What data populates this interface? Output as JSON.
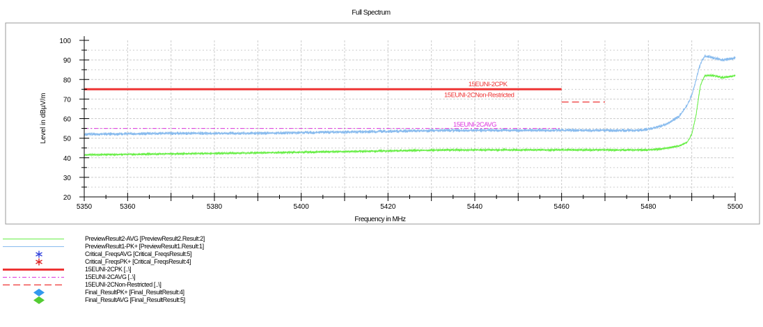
{
  "chart_data": {
    "type": "line",
    "title": "Full Spectrum",
    "xlabel": "Frequency in MHz",
    "ylabel": "Level in dBµV/m",
    "xlim": [
      5350,
      5500
    ],
    "ylim": [
      20,
      100
    ],
    "x_ticks": [
      5350,
      5360,
      5380,
      5400,
      5420,
      5440,
      5460,
      5480,
      5500
    ],
    "y_ticks": [
      20,
      30,
      40,
      50,
      60,
      70,
      80,
      90,
      100
    ],
    "grid": true,
    "series": [
      {
        "name": "PreviewResult2-AVG [PreviewResult2.Result:2]",
        "color": "#66ee44",
        "style": "solid",
        "x": [
          5350,
          5370,
          5390,
          5405,
          5420,
          5435,
          5450,
          5465,
          5480,
          5483,
          5487,
          5489,
          5490,
          5491,
          5492,
          5493,
          5495,
          5497,
          5499,
          5500
        ],
        "y": [
          41.5,
          42,
          42.5,
          43,
          43.5,
          44,
          44,
          44,
          44,
          44.5,
          46,
          48,
          52,
          62,
          77,
          82,
          82,
          81,
          81.5,
          82
        ]
      },
      {
        "name": "PreviewResult1-PK+ [PreviewResult1.Result:1]",
        "color": "#88bbee",
        "style": "solid",
        "x": [
          5350,
          5370,
          5390,
          5405,
          5420,
          5435,
          5450,
          5465,
          5478,
          5481,
          5484,
          5487,
          5489,
          5490,
          5491,
          5492,
          5493,
          5495,
          5497,
          5499,
          5500
        ],
        "y": [
          52,
          52.5,
          52.5,
          53,
          53.5,
          54,
          54,
          54,
          54,
          55,
          57,
          61,
          67,
          72,
          80,
          88,
          92,
          91,
          90,
          90.5,
          91
        ]
      },
      {
        "name": "15EUNI-2CPK [..\\]",
        "color": "#ee3333",
        "style": "thick",
        "x": [
          5350,
          5460
        ],
        "y": [
          75,
          75
        ]
      },
      {
        "name": "15EUNI-2CAVG [..\\]",
        "color": "#dd33dd",
        "style": "dashdot",
        "x": [
          5350,
          5460
        ],
        "y": [
          55,
          55
        ]
      },
      {
        "name": "15EUNI-2CNon-Restricted [..\\]",
        "color": "#ee3333",
        "style": "dashed",
        "x": [
          5460,
          5470
        ],
        "y": [
          68.5,
          68.5
        ]
      }
    ],
    "annotations": [
      {
        "text": "15EUNI-2CPK",
        "x": 5443,
        "y": 76.5,
        "color": "#ee3333"
      },
      {
        "text": "15EUNI-2CNon-Restricted",
        "x": 5441,
        "y": 71,
        "color": "#ee3333"
      },
      {
        "text": "15EUNI-2CAVG",
        "x": 5440,
        "y": 56,
        "color": "#dd33dd"
      }
    ]
  },
  "legend": [
    {
      "label": "PreviewResult2-AVG [PreviewResult2.Result:2]",
      "symbol": "line",
      "color": "#66ee44"
    },
    {
      "label": "PreviewResult1-PK+ [PreviewResult1.Result:1]",
      "symbol": "line",
      "color": "#88bbee"
    },
    {
      "label": "Critical_FreqsAVG [Critical_FreqsResult:5]",
      "symbol": "asterisk",
      "color": "#3344dd"
    },
    {
      "label": "Critical_FreqsPK+ [Critical_FreqsResult:4]",
      "symbol": "asterisk",
      "color": "#dd2222"
    },
    {
      "label": "15EUNI-2CPK [..\\]",
      "symbol": "thick-line",
      "color": "#ee3333"
    },
    {
      "label": "15EUNI-2CAVG [..\\]",
      "symbol": "dashdot-line",
      "color": "#dd33dd"
    },
    {
      "label": "15EUNI-2CNon-Restricted [..\\]",
      "symbol": "dashed-line",
      "color": "#ee3333"
    },
    {
      "label": "Final_ResultPK+ [Final_ResultResult:4]",
      "symbol": "diamond",
      "color": "#3399ee"
    },
    {
      "label": "Final_ResultAVG [Final_ResultResult:5]",
      "symbol": "diamond",
      "color": "#55cc33"
    }
  ]
}
